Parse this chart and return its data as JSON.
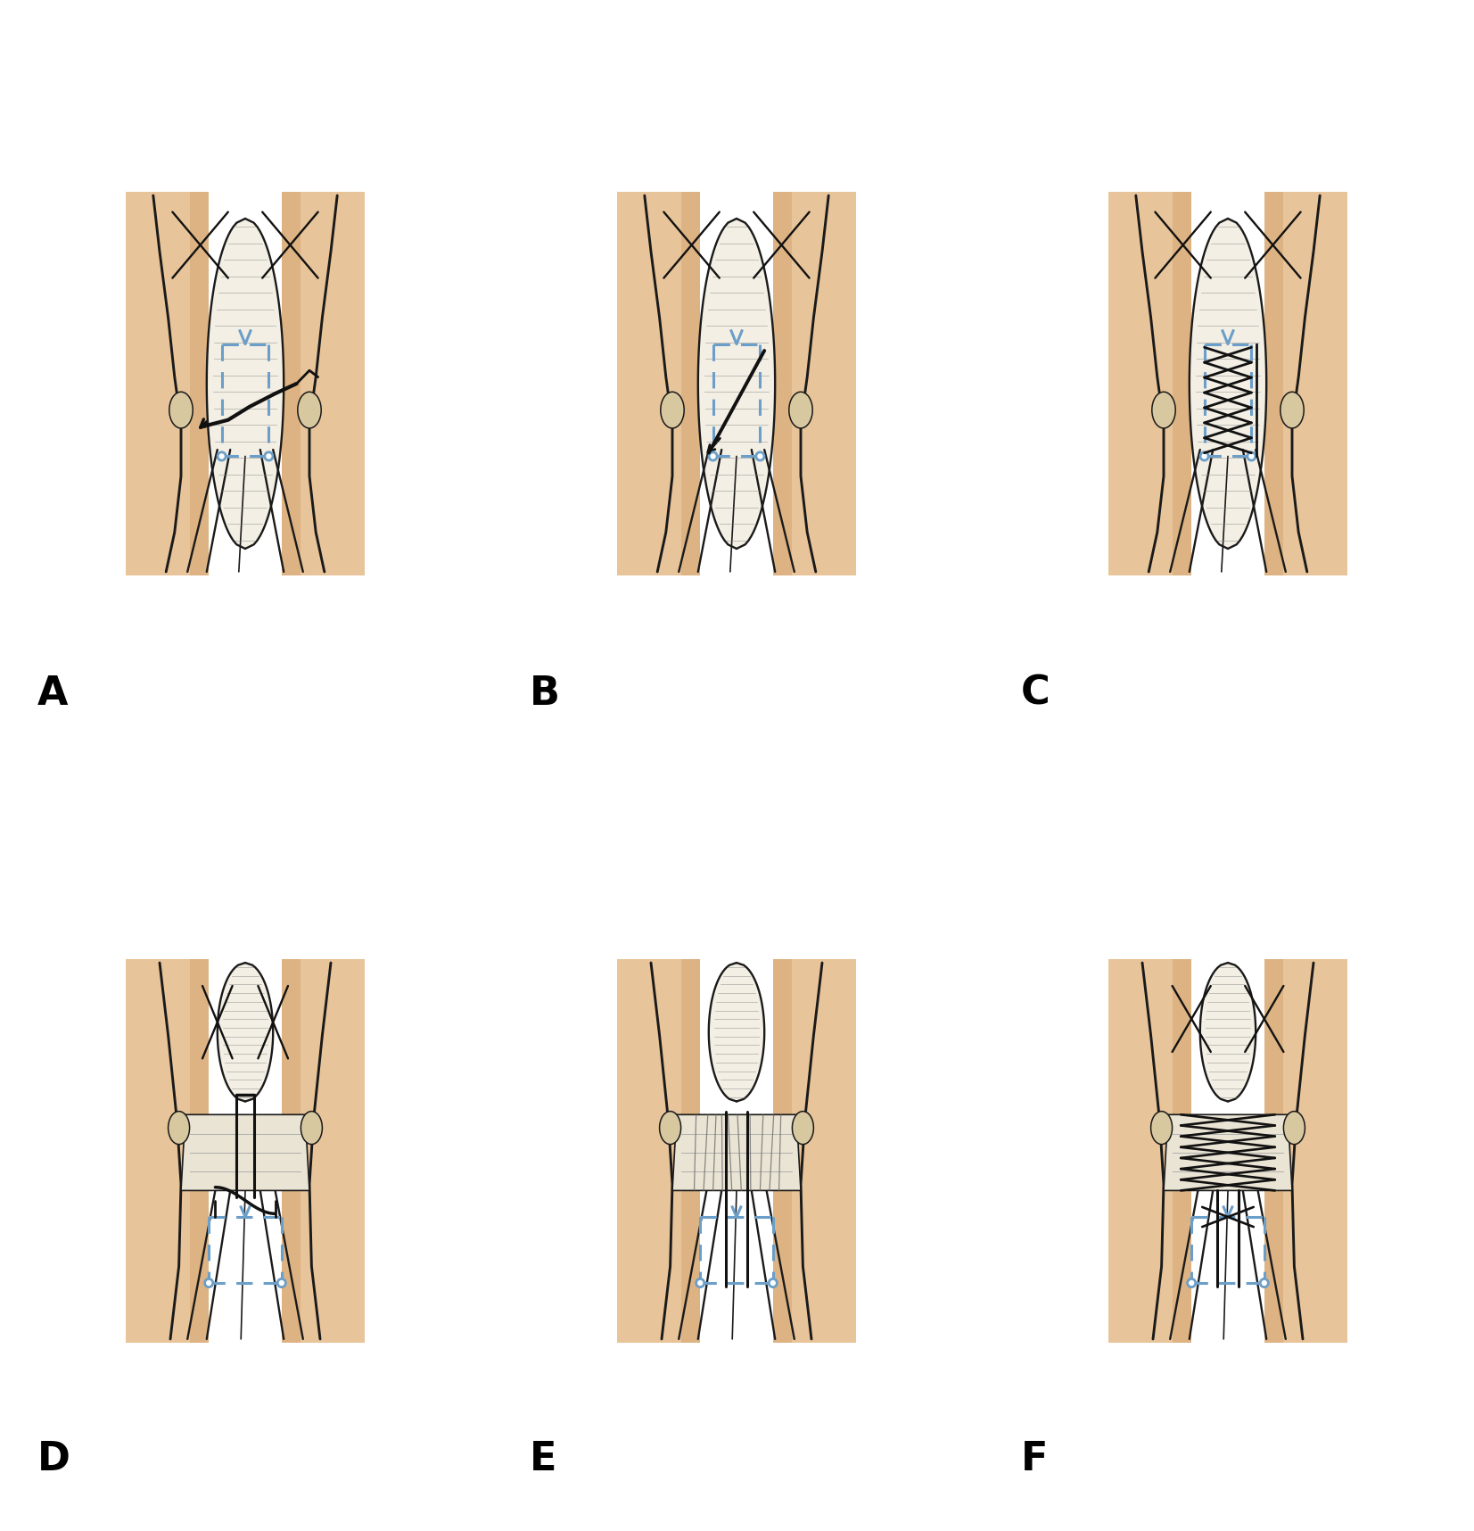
{
  "bg_color": "#FFFFFF",
  "skin_color": "#E8C49A",
  "skin_shadow": "#C9965A",
  "tendon_line": "#1A1A1A",
  "suture_blue": "#6B9EC8",
  "suture_dark": "#111111",
  "label_fontsize": 32,
  "fig_width": 16.53,
  "fig_height": 17.16,
  "panel_configs": [
    [
      "A",
      275,
      430,
      240,
      370
    ],
    [
      "B",
      826,
      430,
      240,
      370
    ],
    [
      "C",
      1377,
      430,
      240,
      370
    ],
    [
      "D",
      275,
      1290,
      240,
      370
    ],
    [
      "E",
      826,
      1290,
      240,
      370
    ],
    [
      "F",
      1377,
      1290,
      240,
      370
    ]
  ],
  "label_positions": [
    [
      "A",
      42,
      790
    ],
    [
      "B",
      594,
      790
    ],
    [
      "C",
      1145,
      790
    ],
    [
      "D",
      42,
      1648
    ],
    [
      "E",
      594,
      1648
    ],
    [
      "F",
      1145,
      1648
    ]
  ]
}
